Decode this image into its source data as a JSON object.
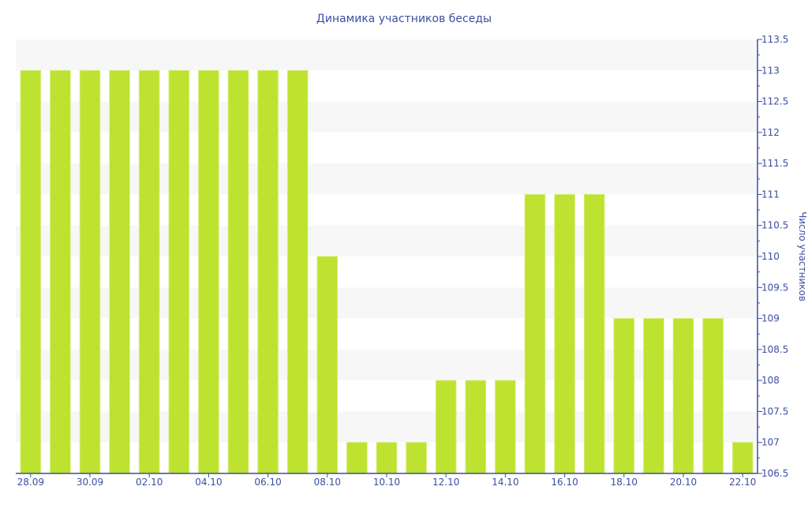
{
  "chart_data": {
    "type": "bar",
    "title": "Динамика участников беседы",
    "xlabel": "",
    "ylabel": "Число участников",
    "ylim": [
      106.5,
      113.5
    ],
    "y_ticks": [
      "106.5",
      "107",
      "107.5",
      "108",
      "108.5",
      "109",
      "109.5",
      "110",
      "110.5",
      "111",
      "111.5",
      "112",
      "112.5",
      "113",
      "113.5"
    ],
    "categories": [
      "28.09",
      "29.09",
      "30.09",
      "01.10",
      "02.10",
      "03.10",
      "04.10",
      "05.10",
      "06.10",
      "07.10",
      "08.10",
      "09.10",
      "10.10",
      "11.10",
      "12.10",
      "13.10",
      "14.10",
      "15.10",
      "16.10",
      "17.10",
      "18.10",
      "19.10",
      "20.10",
      "21.10",
      "22.10"
    ],
    "x_tick_labels": [
      "28.09",
      "30.09",
      "02.10",
      "04.10",
      "06.10",
      "08.10",
      "10.10",
      "12.10",
      "14.10",
      "16.10",
      "18.10",
      "20.10",
      "22.10"
    ],
    "values": [
      113,
      113,
      113,
      113,
      113,
      113,
      113,
      113,
      113,
      113,
      110,
      107,
      107,
      107,
      108,
      108,
      108,
      111,
      111,
      111,
      109,
      109,
      109,
      109,
      107
    ],
    "grid": "alternating horizontal bands",
    "axis_position": "y-axis right",
    "bar_color": "#bde22f",
    "axis_color": "#3b4fa0"
  }
}
